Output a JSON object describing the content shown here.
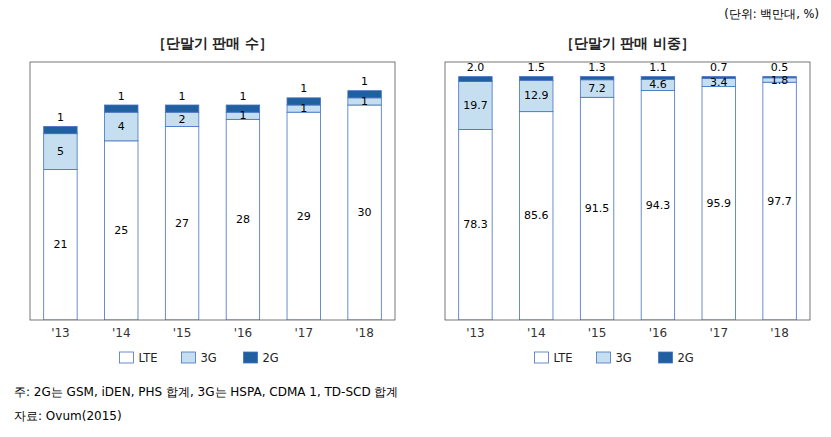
{
  "chart_data": [
    {
      "type": "bar",
      "stacked": true,
      "title": "［단말기 판매 수］",
      "categories": [
        "'13",
        "'14",
        "'15",
        "'16",
        "'17",
        "'18"
      ],
      "series": [
        {
          "name": "LTE",
          "color": "#ffffff",
          "values": [
            21,
            25,
            27,
            28,
            29,
            30
          ]
        },
        {
          "name": "3G",
          "color": "#c5dff0",
          "values": [
            5,
            4,
            2,
            1,
            1,
            1
          ]
        },
        {
          "name": "2G",
          "color": "#2060a0",
          "values": [
            1,
            1,
            1,
            1,
            1,
            1
          ]
        }
      ],
      "ylim": [
        0,
        36
      ],
      "tick_labels": "x",
      "data_labels": true,
      "legend": "bottom",
      "annotations": [
        "(단위: 백만대, %)",
        "주: 2G는 GSM, iDEN, PHS 합계, 3G는 HSPA, CDMA 1, TD-SCD 합계",
        "자료: Ovum(2015)"
      ]
    },
    {
      "type": "bar",
      "stacked": true,
      "title": "［단말기 판매 비중］",
      "categories": [
        "'13",
        "'14",
        "'15",
        "'16",
        "'17",
        "'18"
      ],
      "series": [
        {
          "name": "LTE",
          "color": "#ffffff",
          "values": [
            78.3,
            85.6,
            91.5,
            94.3,
            95.9,
            97.7
          ]
        },
        {
          "name": "3G",
          "color": "#c5dff0",
          "values": [
            19.7,
            12.9,
            7.2,
            4.6,
            3.4,
            1.8
          ]
        },
        {
          "name": "2G",
          "color": "#2060a0",
          "values": [
            2.0,
            1.5,
            1.3,
            1.1,
            0.7,
            0.5
          ],
          "value_labels": [
            "2.0",
            "1.5",
            "1.3",
            "1.1",
            "0.7",
            "0.5"
          ]
        }
      ],
      "ylim": [
        0,
        106
      ],
      "tick_labels": "x",
      "data_labels": true,
      "legend": "bottom"
    }
  ]
}
